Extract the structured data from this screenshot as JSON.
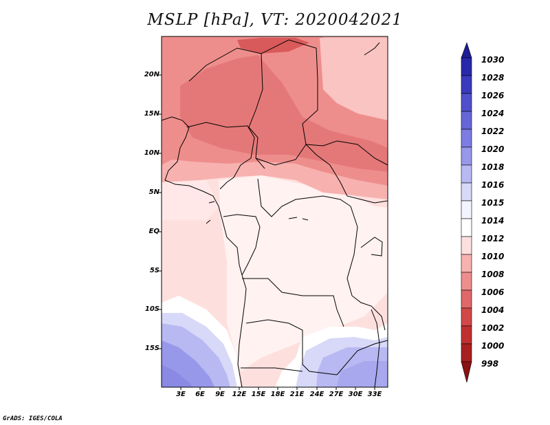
{
  "title": "MSLP [hPa], VT: 2020042021",
  "credit": "GrADS: IGES/COLA",
  "map": {
    "variable": "Mean sea level pressure",
    "units": "hPa",
    "lat_labels": [
      "20N",
      "15N",
      "10N",
      "5N",
      "EQ",
      "5S",
      "10S",
      "15S"
    ],
    "lon_labels": [
      "3E",
      "6E",
      "9E",
      "12E",
      "15E",
      "18E",
      "21E",
      "24E",
      "27E",
      "30E",
      "33E"
    ]
  },
  "colorbar": {
    "levels": [
      "1030",
      "1028",
      "1026",
      "1024",
      "1022",
      "1020",
      "1018",
      "1016",
      "1015",
      "1014",
      "1012",
      "1010",
      "1008",
      "1006",
      "1004",
      "1002",
      "1000",
      "998"
    ],
    "colors": [
      "#1e1e96",
      "#2828aa",
      "#3a3abe",
      "#5050cc",
      "#6666d8",
      "#7c7ce2",
      "#9898ea",
      "#b8b8f2",
      "#d8d8f8",
      "#ffffff",
      "#fde0de",
      "#f7b2b0",
      "#ee8e8c",
      "#e06868",
      "#d24848",
      "#c03030",
      "#a82020",
      "#8a1212"
    ]
  }
}
